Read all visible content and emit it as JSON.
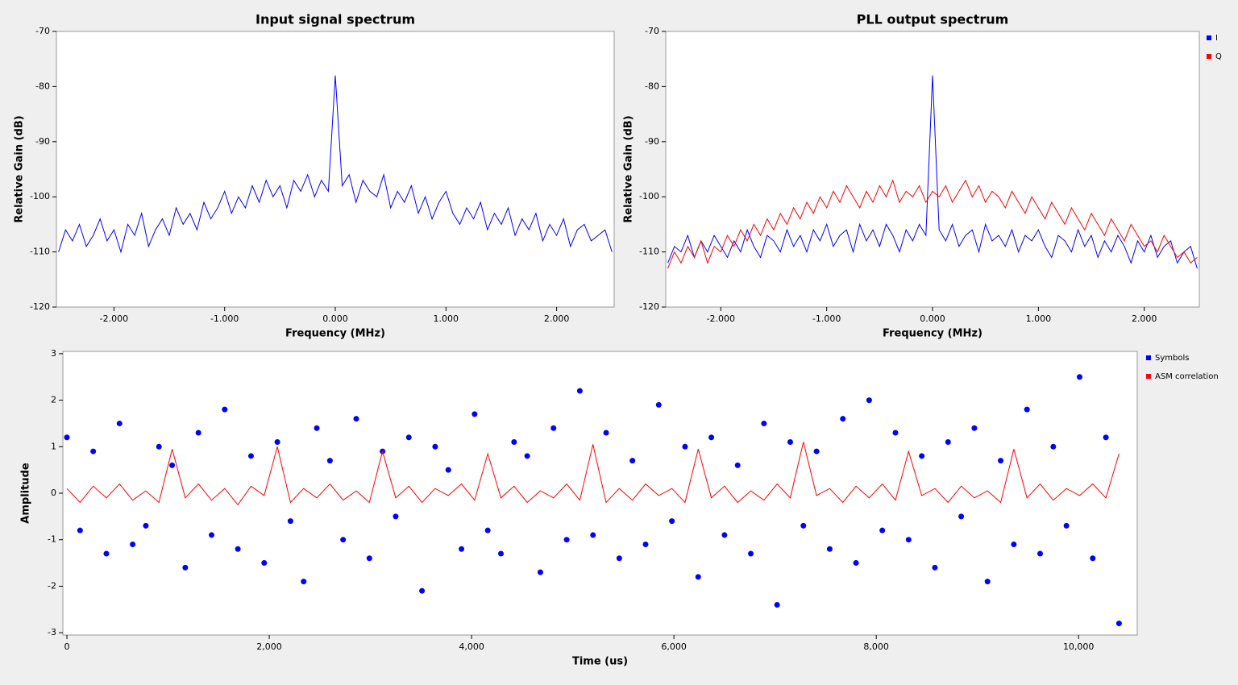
{
  "chart_data": [
    {
      "type": "line",
      "title": "Input signal spectrum",
      "x_label": "Frequency (MHz)",
      "y_label": "Relative Gain (dB)",
      "x": [
        -2.5,
        -2.4375,
        -2.375,
        -2.3125,
        -2.25,
        -2.1875,
        -2.125,
        -2.0625,
        -2,
        -1.9375,
        -1.875,
        -1.8125,
        -1.75,
        -1.6875,
        -1.625,
        -1.5625,
        -1.5,
        -1.4375,
        -1.375,
        -1.3125,
        -1.25,
        -1.1875,
        -1.125,
        -1.0625,
        -1,
        -0.9375,
        -0.875,
        -0.8125,
        -0.75,
        -0.6875,
        -0.625,
        -0.5625,
        -0.5,
        -0.4375,
        -0.375,
        -0.3125,
        -0.25,
        -0.1875,
        -0.125,
        -0.0625,
        0,
        0.0625,
        0.125,
        0.1875,
        0.25,
        0.3125,
        0.375,
        0.4375,
        0.5,
        0.5625,
        0.625,
        0.6875,
        0.75,
        0.8125,
        0.875,
        0.9375,
        1,
        1.0625,
        1.125,
        1.1875,
        1.25,
        1.3125,
        1.375,
        1.4375,
        1.5,
        1.5625,
        1.625,
        1.6875,
        1.75,
        1.8125,
        1.875,
        1.9375,
        2,
        2.0625,
        2.125,
        2.1875,
        2.25,
        2.3125,
        2.375,
        2.4375,
        2.5
      ],
      "values": [
        -110,
        -106,
        -108,
        -105,
        -109,
        -107,
        -104,
        -108,
        -106,
        -110,
        -105,
        -107,
        -103,
        -109,
        -106,
        -104,
        -107,
        -102,
        -105,
        -103,
        -106,
        -101,
        -104,
        -102,
        -99,
        -103,
        -100,
        -102,
        -98,
        -101,
        -97,
        -100,
        -98,
        -102,
        -97,
        -99,
        -96,
        -100,
        -97,
        -99,
        -78,
        -98,
        -96,
        -101,
        -97,
        -99,
        -100,
        -96,
        -102,
        -99,
        -101,
        -98,
        -103,
        -100,
        -104,
        -101,
        -99,
        -103,
        -105,
        -102,
        -104,
        -101,
        -106,
        -103,
        -105,
        -102,
        -107,
        -104,
        -106,
        -103,
        -108,
        -105,
        -107,
        -104,
        -109,
        -106,
        -105,
        -108,
        -107,
        -106,
        -110
      ],
      "color": "#0000ff",
      "xlim": [
        -2.52,
        2.52
      ],
      "ylim": [
        -120,
        -70
      ],
      "xticks": [
        {
          "value": -2,
          "label": "-2.000"
        },
        {
          "value": -1,
          "label": "-1.000"
        },
        {
          "value": 0,
          "label": "0.000"
        },
        {
          "value": 1,
          "label": "1.000"
        },
        {
          "value": 2,
          "label": "2.000"
        }
      ],
      "yticks": [
        -120,
        -110,
        -100,
        -90,
        -80,
        -70
      ]
    },
    {
      "type": "line",
      "title": "PLL output spectrum",
      "x_label": "Frequency (MHz)",
      "y_label": "Relative Gain (dB)",
      "legend": "right",
      "x": [
        -2.5,
        -2.4375,
        -2.375,
        -2.3125,
        -2.25,
        -2.1875,
        -2.125,
        -2.0625,
        -2,
        -1.9375,
        -1.875,
        -1.8125,
        -1.75,
        -1.6875,
        -1.625,
        -1.5625,
        -1.5,
        -1.4375,
        -1.375,
        -1.3125,
        -1.25,
        -1.1875,
        -1.125,
        -1.0625,
        -1,
        -0.9375,
        -0.875,
        -0.8125,
        -0.75,
        -0.6875,
        -0.625,
        -0.5625,
        -0.5,
        -0.4375,
        -0.375,
        -0.3125,
        -0.25,
        -0.1875,
        -0.125,
        -0.0625,
        0,
        0.0625,
        0.125,
        0.1875,
        0.25,
        0.3125,
        0.375,
        0.4375,
        0.5,
        0.5625,
        0.625,
        0.6875,
        0.75,
        0.8125,
        0.875,
        0.9375,
        1,
        1.0625,
        1.125,
        1.1875,
        1.25,
        1.3125,
        1.375,
        1.4375,
        1.5,
        1.5625,
        1.625,
        1.6875,
        1.75,
        1.8125,
        1.875,
        1.9375,
        2,
        2.0625,
        2.125,
        2.1875,
        2.25,
        2.3125,
        2.375,
        2.4375,
        2.5
      ],
      "series": [
        {
          "name": "I",
          "color": "#0000ff",
          "values": [
            -112,
            -109,
            -110,
            -107,
            -111,
            -108,
            -110,
            -107,
            -109,
            -111,
            -108,
            -110,
            -106,
            -109,
            -111,
            -107,
            -108,
            -110,
            -106,
            -109,
            -107,
            -110,
            -106,
            -108,
            -105,
            -109,
            -107,
            -106,
            -110,
            -105,
            -108,
            -106,
            -109,
            -105,
            -107,
            -110,
            -106,
            -108,
            -105,
            -107,
            -78,
            -106,
            -108,
            -105,
            -109,
            -107,
            -106,
            -110,
            -105,
            -108,
            -107,
            -109,
            -106,
            -110,
            -107,
            -108,
            -106,
            -109,
            -111,
            -107,
            -108,
            -110,
            -106,
            -109,
            -107,
            -111,
            -108,
            -110,
            -107,
            -109,
            -112,
            -108,
            -110,
            -107,
            -111,
            -109,
            -108,
            -112,
            -110,
            -109,
            -113
          ]
        },
        {
          "name": "Q",
          "color": "#ff0000",
          "values": [
            -113,
            -110,
            -112,
            -109,
            -111,
            -108,
            -112,
            -109,
            -110,
            -107,
            -109,
            -106,
            -108,
            -105,
            -107,
            -104,
            -106,
            -103,
            -105,
            -102,
            -104,
            -101,
            -103,
            -100,
            -102,
            -99,
            -101,
            -98,
            -100,
            -102,
            -99,
            -101,
            -98,
            -100,
            -97,
            -101,
            -99,
            -100,
            -98,
            -101,
            -99,
            -100,
            -98,
            -101,
            -99,
            -97,
            -100,
            -98,
            -101,
            -99,
            -100,
            -102,
            -99,
            -101,
            -103,
            -100,
            -102,
            -104,
            -101,
            -103,
            -105,
            -102,
            -104,
            -106,
            -103,
            -105,
            -107,
            -104,
            -106,
            -108,
            -105,
            -107,
            -109,
            -108,
            -110,
            -107,
            -109,
            -111,
            -110,
            -112,
            -111
          ]
        }
      ],
      "xlim": [
        -2.52,
        2.52
      ],
      "ylim": [
        -120,
        -70
      ],
      "xticks": [
        {
          "value": -2,
          "label": "-2.000"
        },
        {
          "value": -1,
          "label": "-1.000"
        },
        {
          "value": 0,
          "label": "0.000"
        },
        {
          "value": 1,
          "label": "1.000"
        },
        {
          "value": 2,
          "label": "2.000"
        }
      ],
      "yticks": [
        -120,
        -110,
        -100,
        -90,
        -80,
        -70
      ]
    },
    {
      "type": "scatter",
      "x_label": "Time (us)",
      "y_label": "Amplitude",
      "legend": "right",
      "x": [
        0,
        130,
        260,
        390,
        520,
        650,
        780,
        910,
        1040,
        1170,
        1300,
        1430,
        1560,
        1690,
        1820,
        1950,
        2080,
        2210,
        2340,
        2470,
        2600,
        2730,
        2860,
        2990,
        3120,
        3250,
        3380,
        3510,
        3640,
        3770,
        3900,
        4030,
        4160,
        4290,
        4420,
        4550,
        4680,
        4810,
        4940,
        5070,
        5200,
        5330,
        5460,
        5590,
        5720,
        5850,
        5980,
        6110,
        6240,
        6370,
        6500,
        6630,
        6760,
        6890,
        7020,
        7150,
        7280,
        7410,
        7540,
        7670,
        7800,
        7930,
        8060,
        8190,
        8320,
        8450,
        8580,
        8710,
        8840,
        8970,
        9100,
        9230,
        9360,
        9490,
        9620,
        9750,
        9880,
        10010,
        10140,
        10270,
        10400
      ],
      "series": [
        {
          "name": "Symbols",
          "color": "#0000ff",
          "values": [
            1.2,
            -0.8,
            0.9,
            -1.3,
            1.5,
            -1.1,
            -0.7,
            1.0,
            0.6,
            -1.6,
            1.3,
            -0.9,
            1.8,
            -1.2,
            0.8,
            -1.5,
            1.1,
            -0.6,
            -1.9,
            1.4,
            0.7,
            -1.0,
            1.6,
            -1.4,
            0.9,
            -0.5,
            1.2,
            -2.1,
            1.0,
            0.5,
            -1.2,
            1.7,
            -0.8,
            -1.3,
            1.1,
            0.8,
            -1.7,
            1.4,
            -1.0,
            2.2,
            -0.9,
            1.3,
            -1.4,
            0.7,
            -1.1,
            1.9,
            -0.6,
            1.0,
            -1.8,
            1.2,
            -0.9,
            0.6,
            -1.3,
            1.5,
            -2.4,
            1.1,
            -0.7,
            0.9,
            -1.2,
            1.6,
            -1.5,
            2.0,
            -0.8,
            1.3,
            -1.0,
            0.8,
            -1.6,
            1.1,
            -0.5,
            1.4,
            -1.9,
            0.7,
            -1.1,
            1.8,
            -1.3,
            1.0,
            -0.7,
            2.5,
            -1.4,
            1.2,
            -2.8
          ]
        },
        {
          "name": "ASM correlation",
          "color": "#ff0000",
          "type": "line",
          "values": [
            0.1,
            -0.2,
            0.15,
            -0.1,
            0.2,
            -0.15,
            0.05,
            -0.2,
            0.95,
            -0.1,
            0.2,
            -0.15,
            0.1,
            -0.25,
            0.15,
            -0.05,
            1.0,
            -0.2,
            0.1,
            -0.1,
            0.2,
            -0.15,
            0.05,
            -0.2,
            0.9,
            -0.1,
            0.15,
            -0.2,
            0.1,
            -0.05,
            0.2,
            -0.15,
            0.85,
            -0.1,
            0.15,
            -0.2,
            0.05,
            -0.1,
            0.2,
            -0.15,
            1.05,
            -0.2,
            0.1,
            -0.15,
            0.2,
            -0.05,
            0.1,
            -0.2,
            0.95,
            -0.1,
            0.15,
            -0.2,
            0.05,
            -0.15,
            0.2,
            -0.1,
            1.1,
            -0.05,
            0.1,
            -0.2,
            0.15,
            -0.1,
            0.2,
            -0.15,
            0.9,
            -0.05,
            0.1,
            -0.2,
            0.15,
            -0.1,
            0.05,
            -0.2,
            0.95,
            -0.1,
            0.2,
            -0.15,
            0.1,
            -0.05,
            0.2,
            -0.1,
            0.85
          ]
        }
      ],
      "xlim": [
        -40,
        10580
      ],
      "ylim": [
        -3.05,
        3.05
      ],
      "xticks": [
        0,
        {
          "value": 2000,
          "label": "2,000"
        },
        {
          "value": 4000,
          "label": "4,000"
        },
        {
          "value": 6000,
          "label": "6,000"
        },
        {
          "value": 8000,
          "label": "8,000"
        },
        {
          "value": 10000,
          "label": "10,000"
        }
      ],
      "yticks": [
        -3,
        -2,
        -1,
        0,
        1,
        2,
        3
      ]
    }
  ]
}
